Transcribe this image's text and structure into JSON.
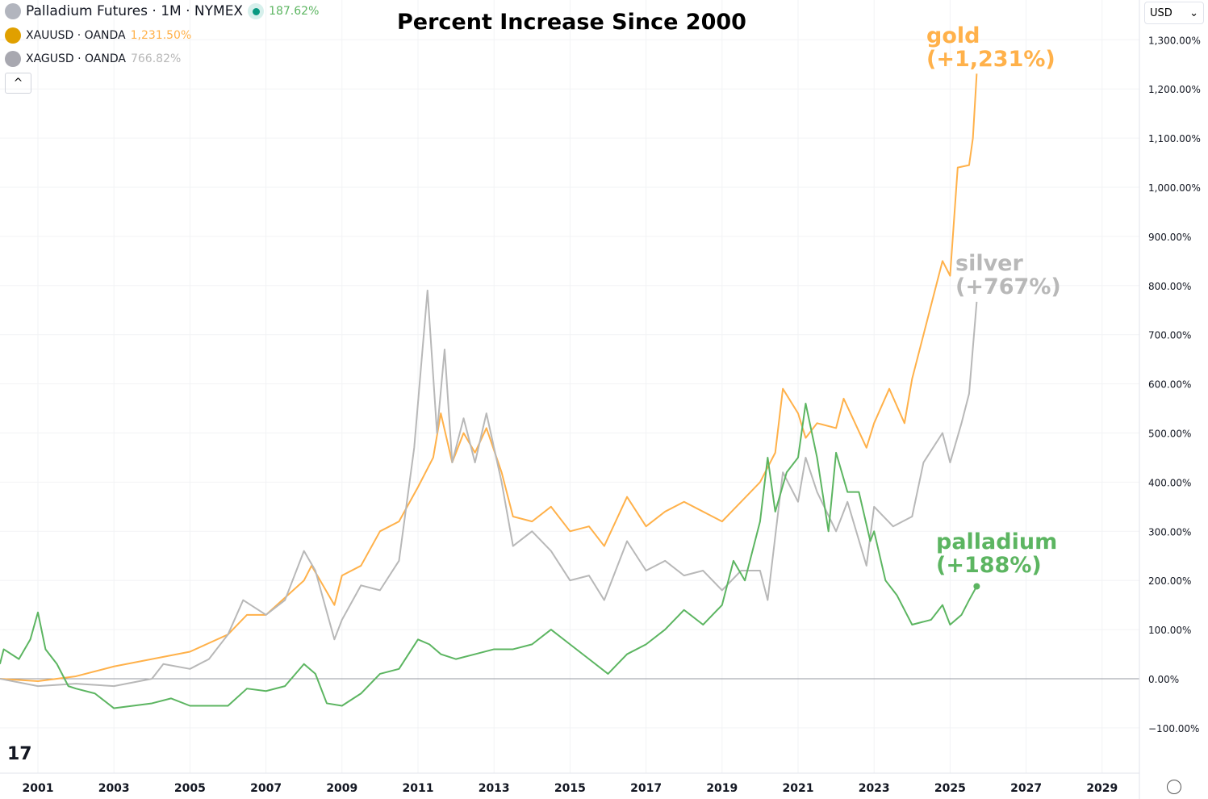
{
  "header": {
    "main_series": "Palladium Futures · 1M · NYMEX",
    "main_value": "187.62%",
    "gold_series": "XAUUSD · OANDA",
    "gold_value": "1,231.50%",
    "silver_series": "XAGUSD · OANDA",
    "silver_value": "766.82%",
    "collapse": "^",
    "currency": "USD",
    "currency_chevron": "⌄"
  },
  "logo": "17",
  "annotations": {
    "gold": "gold",
    "gold_pct": "(+1,231%)",
    "silver": "silver",
    "silver_pct": "(+767%)",
    "palladium": "palladium",
    "palladium_pct": "(+188%)"
  },
  "colors": {
    "gold": "#ffb14a",
    "silver": "#b8b8b8",
    "palladium": "#5cb561"
  },
  "chart_data": {
    "type": "line",
    "title": "Percent Increase Since 2000",
    "xlabel": "",
    "ylabel": "",
    "xlim": [
      2000,
      2030
    ],
    "ylim": [
      -150,
      1350
    ],
    "x_ticks": [
      2001,
      2003,
      2005,
      2007,
      2009,
      2011,
      2013,
      2015,
      2017,
      2019,
      2021,
      2023,
      2025,
      2027,
      2029
    ],
    "y_ticks": [
      -100,
      0,
      100,
      200,
      300,
      400,
      500,
      600,
      700,
      800,
      900,
      1000,
      1100,
      1200,
      1300
    ],
    "y_tick_labels": [
      "−100.00%",
      "0.00%",
      "100.00%",
      "200.00%",
      "300.00%",
      "400.00%",
      "500.00%",
      "600.00%",
      "700.00%",
      "800.00%",
      "900.00%",
      "1,000.00%",
      "1,100.00%",
      "1,200.00%",
      "1,300.00%"
    ],
    "series": [
      {
        "name": "gold",
        "points": [
          [
            2000,
            0
          ],
          [
            2001,
            -5
          ],
          [
            2002,
            5
          ],
          [
            2003,
            25
          ],
          [
            2004,
            40
          ],
          [
            2005,
            55
          ],
          [
            2006,
            90
          ],
          [
            2006.5,
            130
          ],
          [
            2007,
            130
          ],
          [
            2008,
            200
          ],
          [
            2008.2,
            230
          ],
          [
            2008.8,
            150
          ],
          [
            2009,
            210
          ],
          [
            2009.5,
            230
          ],
          [
            2010,
            300
          ],
          [
            2010.5,
            320
          ],
          [
            2011,
            390
          ],
          [
            2011.4,
            450
          ],
          [
            2011.6,
            540
          ],
          [
            2011.9,
            440
          ],
          [
            2012.2,
            500
          ],
          [
            2012.5,
            460
          ],
          [
            2012.8,
            510
          ],
          [
            2013.2,
            420
          ],
          [
            2013.5,
            330
          ],
          [
            2014,
            320
          ],
          [
            2014.5,
            350
          ],
          [
            2015,
            300
          ],
          [
            2015.5,
            310
          ],
          [
            2015.9,
            270
          ],
          [
            2016.5,
            370
          ],
          [
            2017,
            310
          ],
          [
            2017.5,
            340
          ],
          [
            2018,
            360
          ],
          [
            2018.5,
            340
          ],
          [
            2019,
            320
          ],
          [
            2019.5,
            360
          ],
          [
            2020,
            400
          ],
          [
            2020.4,
            460
          ],
          [
            2020.6,
            590
          ],
          [
            2021,
            540
          ],
          [
            2021.2,
            490
          ],
          [
            2021.5,
            520
          ],
          [
            2022,
            510
          ],
          [
            2022.2,
            570
          ],
          [
            2022.8,
            470
          ],
          [
            2023,
            520
          ],
          [
            2023.4,
            590
          ],
          [
            2023.8,
            520
          ],
          [
            2024,
            610
          ],
          [
            2024.3,
            700
          ],
          [
            2024.8,
            850
          ],
          [
            2025,
            820
          ],
          [
            2025.2,
            1040
          ],
          [
            2025.5,
            1045
          ],
          [
            2025.6,
            1100
          ],
          [
            2025.7,
            1231
          ]
        ]
      },
      {
        "name": "silver",
        "points": [
          [
            2000,
            0
          ],
          [
            2001,
            -15
          ],
          [
            2002,
            -10
          ],
          [
            2003,
            -15
          ],
          [
            2004,
            0
          ],
          [
            2004.3,
            30
          ],
          [
            2005,
            20
          ],
          [
            2005.5,
            40
          ],
          [
            2006,
            90
          ],
          [
            2006.4,
            160
          ],
          [
            2007,
            130
          ],
          [
            2007.5,
            160
          ],
          [
            2008,
            260
          ],
          [
            2008.3,
            220
          ],
          [
            2008.8,
            80
          ],
          [
            2009,
            120
          ],
          [
            2009.5,
            190
          ],
          [
            2010,
            180
          ],
          [
            2010.5,
            240
          ],
          [
            2010.9,
            470
          ],
          [
            2011.25,
            790
          ],
          [
            2011.5,
            500
          ],
          [
            2011.7,
            670
          ],
          [
            2011.9,
            440
          ],
          [
            2012.2,
            530
          ],
          [
            2012.5,
            440
          ],
          [
            2012.8,
            540
          ],
          [
            2013.2,
            400
          ],
          [
            2013.5,
            270
          ],
          [
            2014,
            300
          ],
          [
            2014.5,
            260
          ],
          [
            2015,
            200
          ],
          [
            2015.5,
            210
          ],
          [
            2015.9,
            160
          ],
          [
            2016.5,
            280
          ],
          [
            2017,
            220
          ],
          [
            2017.5,
            240
          ],
          [
            2018,
            210
          ],
          [
            2018.5,
            220
          ],
          [
            2019,
            180
          ],
          [
            2019.5,
            220
          ],
          [
            2020,
            220
          ],
          [
            2020.2,
            160
          ],
          [
            2020.6,
            420
          ],
          [
            2021,
            360
          ],
          [
            2021.2,
            450
          ],
          [
            2021.5,
            380
          ],
          [
            2022,
            300
          ],
          [
            2022.3,
            360
          ],
          [
            2022.8,
            230
          ],
          [
            2023,
            350
          ],
          [
            2023.5,
            310
          ],
          [
            2024,
            330
          ],
          [
            2024.3,
            440
          ],
          [
            2024.8,
            500
          ],
          [
            2025,
            440
          ],
          [
            2025.3,
            520
          ],
          [
            2025.5,
            580
          ],
          [
            2025.7,
            767
          ]
        ]
      },
      {
        "name": "palladium",
        "points": [
          [
            2000,
            30
          ],
          [
            2000.1,
            60
          ],
          [
            2000.5,
            40
          ],
          [
            2000.8,
            80
          ],
          [
            2001,
            135
          ],
          [
            2001.2,
            60
          ],
          [
            2001.5,
            30
          ],
          [
            2001.8,
            -15
          ],
          [
            2002,
            -20
          ],
          [
            2002.5,
            -30
          ],
          [
            2003,
            -60
          ],
          [
            2004,
            -50
          ],
          [
            2004.5,
            -40
          ],
          [
            2005,
            -55
          ],
          [
            2006,
            -55
          ],
          [
            2006.5,
            -20
          ],
          [
            2007,
            -25
          ],
          [
            2007.5,
            -15
          ],
          [
            2008,
            30
          ],
          [
            2008.3,
            10
          ],
          [
            2008.6,
            -50
          ],
          [
            2009,
            -55
          ],
          [
            2009.5,
            -30
          ],
          [
            2010,
            10
          ],
          [
            2010.5,
            20
          ],
          [
            2011,
            80
          ],
          [
            2011.3,
            70
          ],
          [
            2011.6,
            50
          ],
          [
            2012,
            40
          ],
          [
            2012.5,
            50
          ],
          [
            2013,
            60
          ],
          [
            2013.5,
            60
          ],
          [
            2014,
            70
          ],
          [
            2014.5,
            100
          ],
          [
            2015,
            70
          ],
          [
            2015.5,
            40
          ],
          [
            2016,
            10
          ],
          [
            2016.5,
            50
          ],
          [
            2017,
            70
          ],
          [
            2017.5,
            100
          ],
          [
            2018,
            140
          ],
          [
            2018.5,
            110
          ],
          [
            2019,
            150
          ],
          [
            2019.3,
            240
          ],
          [
            2019.6,
            200
          ],
          [
            2020,
            320
          ],
          [
            2020.2,
            450
          ],
          [
            2020.4,
            340
          ],
          [
            2020.7,
            420
          ],
          [
            2021,
            450
          ],
          [
            2021.2,
            560
          ],
          [
            2021.5,
            450
          ],
          [
            2021.8,
            300
          ],
          [
            2022,
            460
          ],
          [
            2022.3,
            380
          ],
          [
            2022.6,
            380
          ],
          [
            2022.9,
            280
          ],
          [
            2023,
            300
          ],
          [
            2023.3,
            200
          ],
          [
            2023.6,
            170
          ],
          [
            2024,
            110
          ],
          [
            2024.5,
            120
          ],
          [
            2024.8,
            150
          ],
          [
            2025,
            110
          ],
          [
            2025.3,
            130
          ],
          [
            2025.5,
            160
          ],
          [
            2025.7,
            188
          ]
        ]
      }
    ]
  }
}
